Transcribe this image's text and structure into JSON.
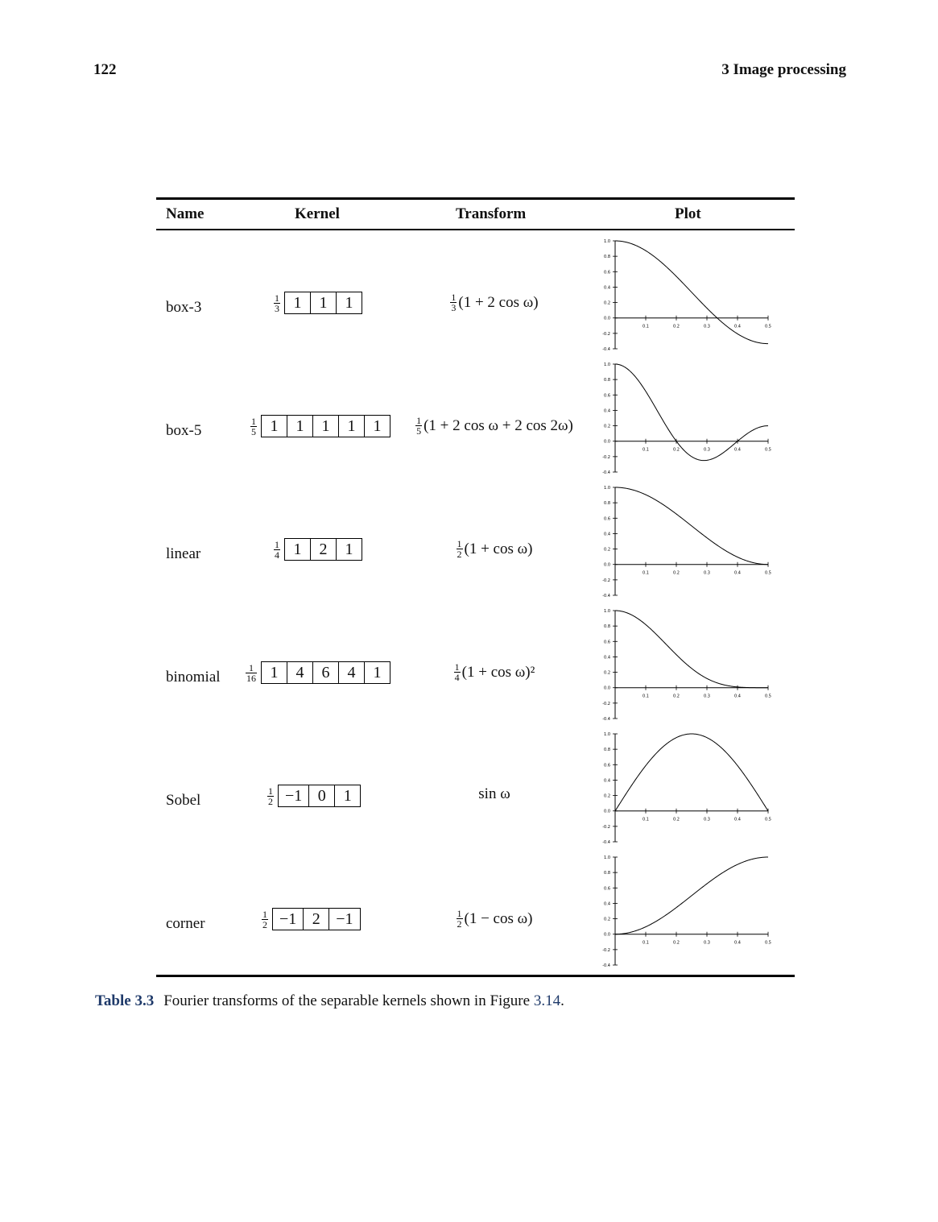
{
  "header": {
    "page_number": "122",
    "chapter": "3  Image processing"
  },
  "table": {
    "columns": [
      "Name",
      "Kernel",
      "Transform",
      "Plot"
    ],
    "rows": [
      {
        "name": "box-3",
        "kernel_scale": {
          "num": "1",
          "den": "3"
        },
        "kernel": [
          "1",
          "1",
          "1"
        ],
        "transform": {
          "scale": {
            "num": "1",
            "den": "3"
          },
          "expr": "(1 + 2 cos ω)"
        },
        "fn": "box3"
      },
      {
        "name": "box-5",
        "kernel_scale": {
          "num": "1",
          "den": "5"
        },
        "kernel": [
          "1",
          "1",
          "1",
          "1",
          "1"
        ],
        "transform": {
          "scale": {
            "num": "1",
            "den": "5"
          },
          "expr": "(1 + 2 cos ω + 2 cos 2ω)"
        },
        "fn": "box5"
      },
      {
        "name": "linear",
        "kernel_scale": {
          "num": "1",
          "den": "4"
        },
        "kernel": [
          "1",
          "2",
          "1"
        ],
        "transform": {
          "scale": {
            "num": "1",
            "den": "2"
          },
          "expr": "(1 + cos ω)"
        },
        "fn": "linear"
      },
      {
        "name": "binomial",
        "kernel_scale": {
          "num": "1",
          "den": "16"
        },
        "kernel": [
          "1",
          "4",
          "6",
          "4",
          "1"
        ],
        "transform": {
          "scale": {
            "num": "1",
            "den": "4"
          },
          "expr": "(1 + cos ω)²"
        },
        "fn": "binomial"
      },
      {
        "name": "Sobel",
        "kernel_scale": {
          "num": "1",
          "den": "2"
        },
        "kernel": [
          "−1",
          "0",
          "1"
        ],
        "transform": {
          "scale": null,
          "expr": "sin ω"
        },
        "fn": "sobel"
      },
      {
        "name": "corner",
        "kernel_scale": {
          "num": "1",
          "den": "2"
        },
        "kernel": [
          "−1",
          "2",
          "−1"
        ],
        "transform": {
          "scale": {
            "num": "1",
            "den": "2"
          },
          "expr": "(1 − cos ω)"
        },
        "fn": "corner"
      }
    ]
  },
  "plot_axes": {
    "x_ticks": [
      "0.1",
      "0.2",
      "0.3",
      "0.4",
      "0.5"
    ],
    "y_ticks": [
      "1.0",
      "0.8",
      "0.6",
      "0.4",
      "0.2",
      "0.0",
      "-0.2",
      "-0.4"
    ],
    "xlim": [
      0,
      0.5
    ],
    "ylim": [
      -0.4,
      1.0
    ]
  },
  "caption": {
    "label": "Table 3.3",
    "text": "Fourier transforms of the separable kernels shown in Figure ",
    "ref": "3.14",
    "end": "."
  }
}
